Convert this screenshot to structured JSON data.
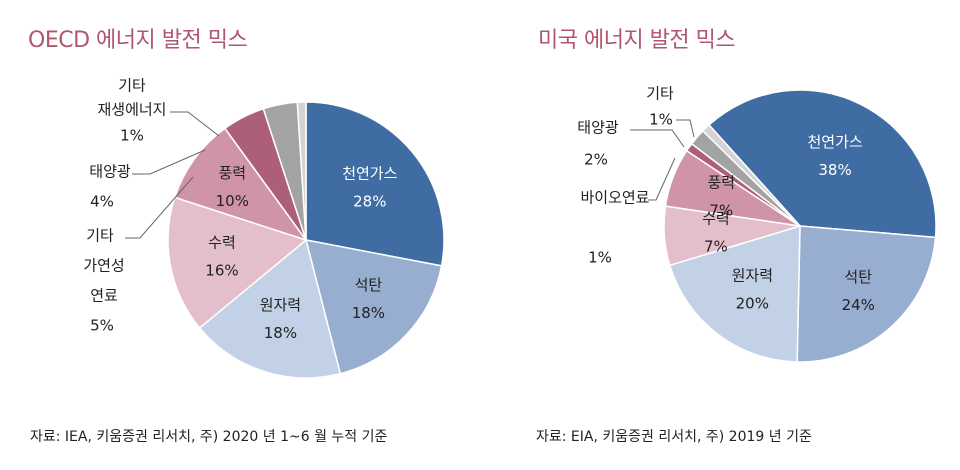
{
  "chart_data": [
    {
      "type": "pie",
      "title": "OECD 에너지 발전 믹스",
      "source": "자료: IEA, 키움증권 리서치, 주) 2020 년 1~6 월 누적 기준",
      "slices": [
        {
          "name": "천연가스",
          "value": 28,
          "label": "28%",
          "color": "#3f6da3",
          "text_color": "#ffffff"
        },
        {
          "name": "석탄",
          "value": 18,
          "label": "18%",
          "color": "#97aed0",
          "text_color": "#222222"
        },
        {
          "name": "원자력",
          "value": 18,
          "label": "18%",
          "color": "#c3d1e6",
          "text_color": "#222222"
        },
        {
          "name": "수력",
          "value": 16,
          "label": "16%",
          "color": "#e3bfcb",
          "text_color": "#222222"
        },
        {
          "name": "풍력",
          "value": 10,
          "label": "10%",
          "color": "#cf95a6",
          "text_color": "#222222"
        },
        {
          "name": "기타 가연성 연료",
          "value": 5,
          "label": "5%",
          "color": "#ad5f79",
          "text_color": "#222222"
        },
        {
          "name": "태양광",
          "value": 4,
          "label": "4%",
          "color": "#a3a3a3",
          "text_color": "#222222"
        },
        {
          "name": "기타 재생에너지",
          "value": 1,
          "label": "1%",
          "color": "#d3d3d3",
          "text_color": "#222222"
        }
      ]
    },
    {
      "type": "pie",
      "title": "미국 에너지 발전 믹스",
      "source": "자료: EIA, 키움증권 리서치, 주) 2019 년 기준",
      "slices": [
        {
          "name": "천연가스",
          "value": 38,
          "label": "38%",
          "color": "#3f6da3",
          "text_color": "#ffffff"
        },
        {
          "name": "석탄",
          "value": 24,
          "label": "24%",
          "color": "#97aed0",
          "text_color": "#222222"
        },
        {
          "name": "원자력",
          "value": 20,
          "label": "20%",
          "color": "#c3d1e6",
          "text_color": "#222222"
        },
        {
          "name": "수력",
          "value": 7,
          "label": "7%",
          "color": "#e3bfcb",
          "text_color": "#222222"
        },
        {
          "name": "풍력",
          "value": 7,
          "label": "7%",
          "color": "#cf95a6",
          "text_color": "#222222"
        },
        {
          "name": "바이오연료",
          "value": 1,
          "label": "1%",
          "color": "#ad5f79",
          "text_color": "#222222"
        },
        {
          "name": "태양광",
          "value": 2,
          "label": "2%",
          "color": "#a3a3a3",
          "text_color": "#222222"
        },
        {
          "name": "기타",
          "value": 1,
          "label": "1%",
          "color": "#d3d3d3",
          "text_color": "#222222"
        }
      ]
    }
  ]
}
